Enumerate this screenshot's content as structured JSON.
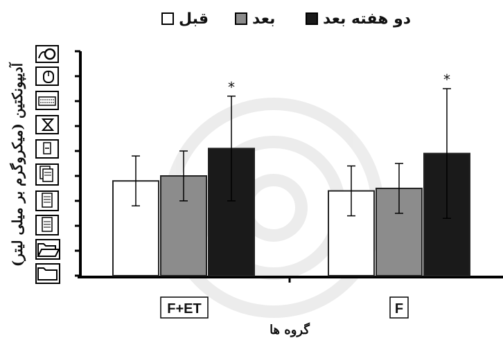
{
  "chart_data": {
    "type": "bar",
    "title": "",
    "xlabel": "گروه ها",
    "ylabel": "آدیپونکتین (میکروگرم بر میلی لیتر)",
    "categories": [
      "F",
      "F+ET"
    ],
    "legend_position": "top",
    "grid": false,
    "ylim": [
      0,
      9
    ],
    "series": [
      {
        "name": "قبل",
        "color": "#ffffff",
        "values": [
          3.4,
          3.8
        ],
        "error": [
          1.0,
          1.0
        ]
      },
      {
        "name": "بعد",
        "color": "#8c8c8c",
        "values": [
          3.5,
          4.0
        ],
        "error": [
          1.0,
          1.0
        ]
      },
      {
        "name": "دو هفته بعد",
        "color": "#1a1a1a",
        "values": [
          4.9,
          5.1
        ],
        "error": [
          2.6,
          2.1
        ]
      }
    ],
    "annotations": [
      {
        "category": "F",
        "series": "دو هفته بعد",
        "text": "*"
      },
      {
        "category": "F+ET",
        "series": "دو هفته بعد",
        "text": "*"
      }
    ]
  },
  "toolbar_icons": [
    "webcam-icon",
    "mouse-icon",
    "keyboard-icon",
    "hourglass-icon",
    "storage-card-icon",
    "documents-icon",
    "document-icon",
    "document-icon",
    "open-folder-icon",
    "folder-icon"
  ]
}
